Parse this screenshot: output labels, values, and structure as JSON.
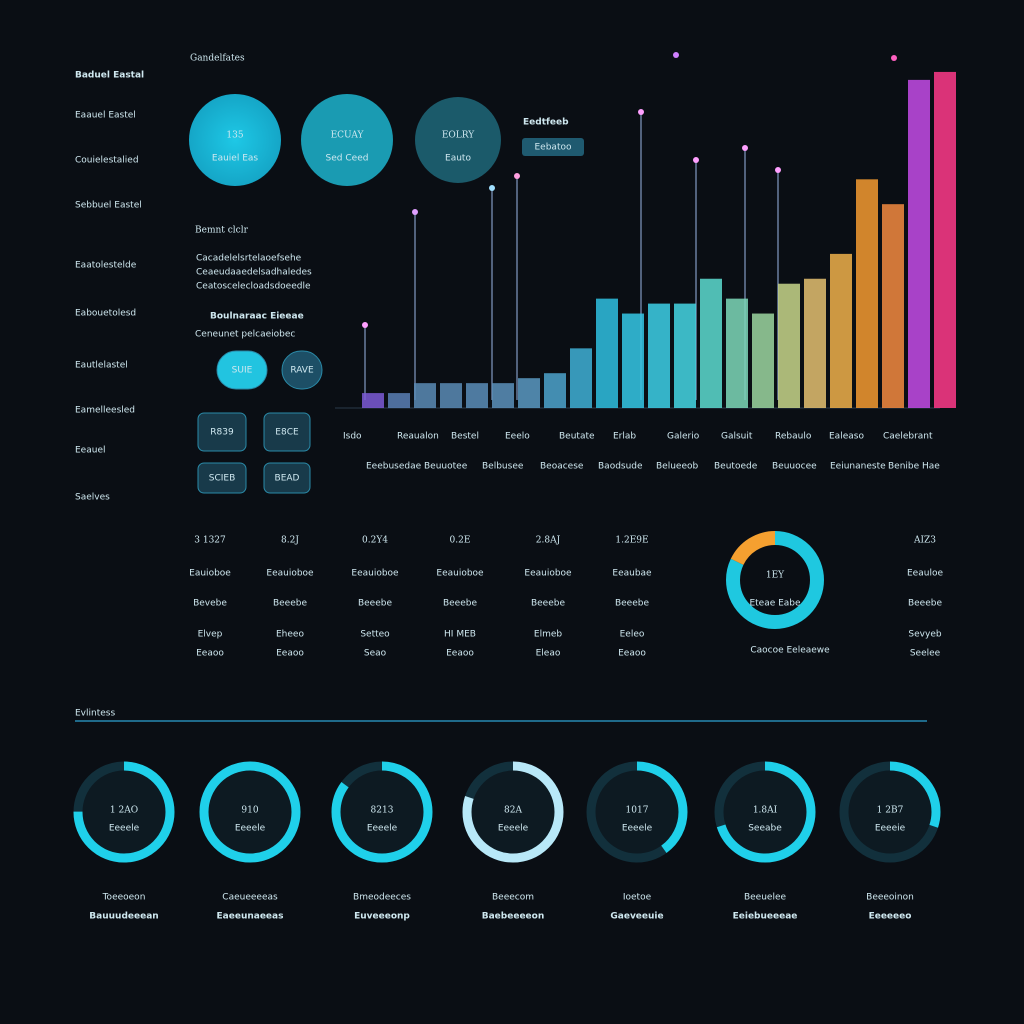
{
  "sidebar": {
    "brand": "Baduel Eastal",
    "items": [
      "Eaauel Eastel",
      "Couielestalied",
      "Sebbuel Eastel",
      "Eaatolestelde",
      "Eabouetolesd",
      "Eautlelastel",
      "Eamelleesled",
      "Eeauel",
      "Saelves"
    ]
  },
  "header": {
    "title": "Gandelfates"
  },
  "kpis": [
    {
      "value": "135",
      "label": "Eauiel Eas"
    },
    {
      "value": "ECUAY",
      "label": "Sed Ceed"
    },
    {
      "value": "EOLRY",
      "label": "Eauto"
    }
  ],
  "tag": {
    "title": "Eedtfeeb",
    "button": "Eebatoo"
  },
  "panel": {
    "title": "Bemnt clclr",
    "lines": [
      "Cacadelelsrtelaoefsehe",
      "Ceaeudaaedelsadhaledes",
      "Ceatoscelecloadsdoeedle"
    ],
    "subtitle": "Boulnaraac Eieeae",
    "subline": "Ceneunet pelcaeiobec",
    "buttons": [
      "SUIE",
      "RAVE",
      "R839",
      "E8CE",
      "SCIEB",
      "BEAD"
    ]
  },
  "bar_chart": {
    "type": "bar",
    "ylim": [
      0,
      350
    ],
    "values": [
      15,
      15,
      25,
      25,
      25,
      25,
      30,
      35,
      60,
      110,
      95,
      105,
      105,
      130,
      110,
      95,
      125,
      130,
      155,
      230,
      205,
      330,
      338
    ],
    "colors": [
      "#7d5bd6",
      "#5b7fb5",
      "#5b8bb5",
      "#5b8bb5",
      "#5b8db8",
      "#5c90bb",
      "#5a99c2",
      "#4da3cc",
      "#3fb0d6",
      "#2fc0e0",
      "#35c8e6",
      "#3dd0e8",
      "#45d6e4",
      "#5ddcd0",
      "#7ed8b8",
      "#9cd6a0",
      "#c8d68a",
      "#e4c070",
      "#f0b04a",
      "#f59a30",
      "#f38a40",
      "#c44be8",
      "#ff3a8a"
    ],
    "categories": [
      "Isdo",
      "Reaualon",
      "Bestel",
      "Eeelo",
      "Beutate",
      "Erlab",
      "Galerio",
      "Galsuit",
      "Rebaulo",
      "Ealeaso",
      "Caelebrant"
    ],
    "sub_categories": [
      "Eeebusedae",
      "Beuuotee",
      "Belbusee",
      "Beoacese",
      "Baodsude",
      "Belueeob",
      "Beutoede",
      "Beuuocee",
      "Eeiunaneste",
      "Benibe Hae"
    ]
  },
  "stats": [
    {
      "value": "3 1327",
      "label": "Eauioboe",
      "tag": "Bevebe",
      "a": "Elvep",
      "b": "Eeaoo"
    },
    {
      "value": "8.2J",
      "label": "Eeauioboe",
      "tag": "Beeebe",
      "a": "Eheeo",
      "b": "Eeaoo"
    },
    {
      "value": "0.2Y4",
      "label": "Eeauioboe",
      "tag": "Beeebe",
      "a": "Setteo",
      "b": "Seao"
    },
    {
      "value": "0.2E",
      "label": "Eeauioboe",
      "tag": "Beeebe",
      "a": "HI MEB",
      "b": "Eeaoo"
    },
    {
      "value": "2.8AJ",
      "label": "Eeauioboe",
      "tag": "Beeebe",
      "a": "Elmeb",
      "b": "Eleao"
    },
    {
      "value": "1.2E9E",
      "label": "Eeaubae",
      "tag": "Beeebe",
      "a": "Eeleo",
      "b": "Eeaoo"
    }
  ],
  "donut": {
    "values": [
      82,
      18
    ],
    "colors": [
      "#1fc8e0",
      "#f5a030"
    ],
    "label": "1EY",
    "caption": "Eteae Eabe",
    "footer": "Caocoe Eeleaewe"
  },
  "right_stat": {
    "value": "AIZ3",
    "label": "Eeauloe",
    "tag": "Beeebe",
    "a": "Sevyeb",
    "b": "Seelee"
  },
  "section": {
    "title": "Evlintess"
  },
  "rings": [
    {
      "value": "1 2AO",
      "label": "Eeeele",
      "progress": 75,
      "title": "Toeeoeon",
      "subtitle": "Bauuudeeean"
    },
    {
      "value": "910",
      "label": "Eeeele",
      "progress": 100,
      "title": "Caeueeeeas",
      "subtitle": "Eaeeunaeeas"
    },
    {
      "value": "8213",
      "label": "Eeeele",
      "progress": 85,
      "title": "Bmeodeeces",
      "subtitle": "Euveeeonp"
    },
    {
      "value": "82A",
      "label": "Eeeele",
      "progress": 80,
      "title": "Beeecom",
      "subtitle": "Baebeeeeon"
    },
    {
      "value": "1017",
      "label": "Eeeele",
      "progress": 40,
      "title": "Ioetoe",
      "subtitle": "Gaeveeuie"
    },
    {
      "value": "1.8AI",
      "label": "Seeabe",
      "progress": 70,
      "title": "Beeuelee",
      "subtitle": "Eeiebueeeae"
    },
    {
      "value": "1 2B7",
      "label": "Eeeeie",
      "progress": 30,
      "title": "Beeeoinon",
      "subtitle": "Eeeeeeo"
    }
  ]
}
